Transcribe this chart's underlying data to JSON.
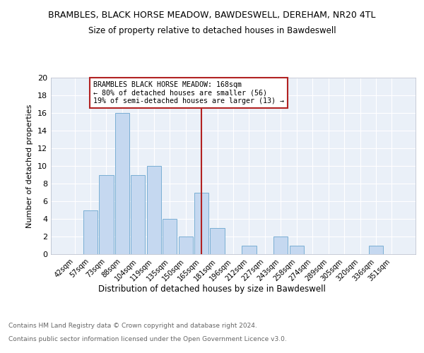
{
  "title": "BRAMBLES, BLACK HORSE MEADOW, BAWDESWELL, DEREHAM, NR20 4TL",
  "subtitle": "Size of property relative to detached houses in Bawdeswell",
  "xlabel": "Distribution of detached houses by size in Bawdeswell",
  "ylabel": "Number of detached properties",
  "categories": [
    "42sqm",
    "57sqm",
    "73sqm",
    "88sqm",
    "104sqm",
    "119sqm",
    "135sqm",
    "150sqm",
    "165sqm",
    "181sqm",
    "196sqm",
    "212sqm",
    "227sqm",
    "243sqm",
    "258sqm",
    "274sqm",
    "289sqm",
    "305sqm",
    "320sqm",
    "336sqm",
    "351sqm"
  ],
  "values": [
    0,
    5,
    9,
    16,
    9,
    10,
    4,
    2,
    7,
    3,
    0,
    1,
    0,
    2,
    1,
    0,
    0,
    0,
    0,
    1,
    0
  ],
  "bar_color": "#c5d8f0",
  "bar_edge_color": "#7aafd4",
  "reference_line_x": 8,
  "reference_line_color": "#b22222",
  "annotation_text": "BRAMBLES BLACK HORSE MEADOW: 168sqm\n← 80% of detached houses are smaller (56)\n19% of semi-detached houses are larger (13) →",
  "annotation_box_color": "#ffffff",
  "annotation_box_edge_color": "#b22222",
  "ylim": [
    0,
    20
  ],
  "yticks": [
    0,
    2,
    4,
    6,
    8,
    10,
    12,
    14,
    16,
    18,
    20
  ],
  "footer_line1": "Contains HM Land Registry data © Crown copyright and database right 2024.",
  "footer_line2": "Contains public sector information licensed under the Open Government Licence v3.0.",
  "plot_bg_color": "#eaf0f8"
}
